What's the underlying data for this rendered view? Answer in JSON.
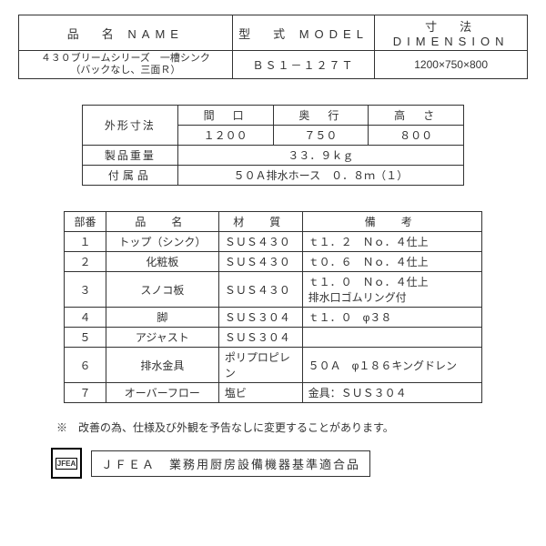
{
  "top_table": {
    "headers": [
      "品　名 NAME",
      "型　式 MODEL",
      "寸　法 DIMENSION"
    ],
    "name_line1": "４３０ブリームシリーズ　一槽シンク",
    "name_line2": "（バックなし、三面Ｒ）",
    "model": "ＢＳ１－１２７Ｔ",
    "dimension": "1200×750×800"
  },
  "spec_table": {
    "outline_label": "外形寸法",
    "cols": [
      "間　口",
      "奥　行",
      "高　さ"
    ],
    "vals": [
      "１２００",
      "７５０",
      "８００"
    ],
    "weight_label": "製品重量",
    "weight_value": "３３．９ｋｇ",
    "accessory_label": "付属品",
    "accessory_value": "５０Ａ排水ホース　０．８ｍ（１）"
  },
  "parts_table": {
    "headers": [
      "部番",
      "品　名",
      "材　質",
      "備　考"
    ],
    "rows": [
      {
        "no": "１",
        "name": "トップ（シンク）",
        "mat": "ＳＵＳ４３０",
        "note": "ｔ１．２　Ｎｏ．４仕上"
      },
      {
        "no": "２",
        "name": "化粧板",
        "mat": "ＳＵＳ４３０",
        "note": "ｔ０．６　Ｎｏ．４仕上"
      },
      {
        "no": "３",
        "name": "スノコ板",
        "mat": "ＳＵＳ４３０",
        "note": "ｔ１．０　Ｎｏ．４仕上\n排水口ゴムリング付"
      },
      {
        "no": "４",
        "name": "脚",
        "mat": "ＳＵＳ３０４",
        "note": "ｔ１．０　φ３８"
      },
      {
        "no": "５",
        "name": "アジャスト",
        "mat": "ＳＵＳ３０４",
        "note": ""
      },
      {
        "no": "６",
        "name": "排水金具",
        "mat": "ポリプロピレン",
        "note": "５０Ａ　φ１８６キングドレン"
      },
      {
        "no": "７",
        "name": "オーバーフロー",
        "mat": "塩ビ",
        "note": "金具：ＳＵＳ３０４"
      }
    ]
  },
  "note": "※　改善の為、仕様及び外観を予告なしに変更することがあります。",
  "jfea": {
    "logo": "JFEA",
    "text": "ＪＦＥＡ　業務用厨房設備機器基準適合品"
  }
}
